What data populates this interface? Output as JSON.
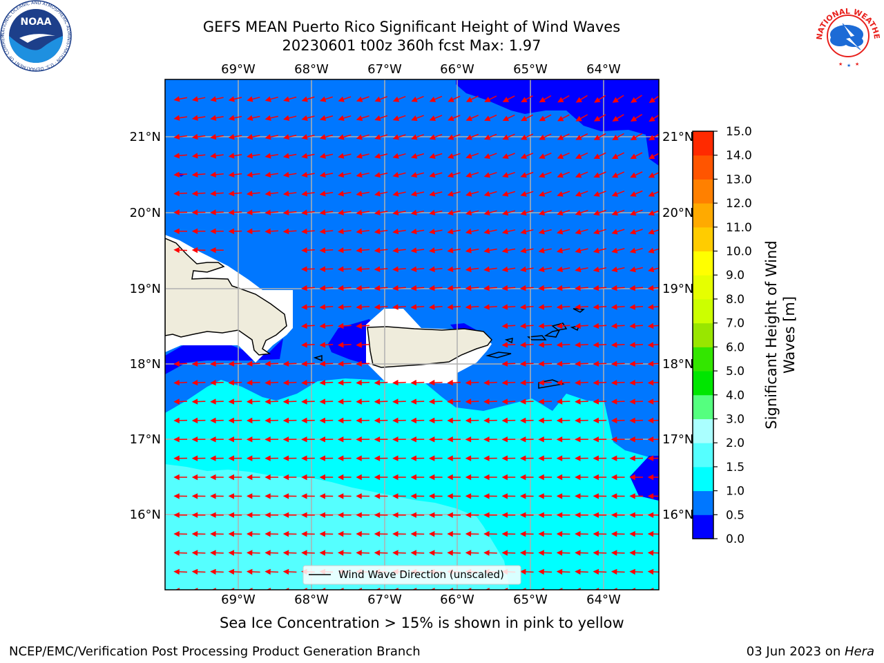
{
  "title": {
    "line1": "GEFS MEAN Puerto Rico Significant Height of Wind Waves",
    "line2": "20230601 t00z 360h fcst   Max: 1.97"
  },
  "map": {
    "lon_labels": [
      "69°W",
      "68°W",
      "67°W",
      "66°W",
      "65°W",
      "64°W"
    ],
    "lat_labels": [
      "21°N",
      "20°N",
      "19°N",
      "18°N",
      "17°N",
      "16°N"
    ],
    "legend_label": "Wind Wave Direction (unscaled)",
    "colors": {
      "ocean_lt_0_5": "#0000ff",
      "ocean_0_5_1": "#0077ff",
      "ocean_1_1_5": "#00ffff",
      "ocean_1_5_2": "#55ffff",
      "land": "#efecdc",
      "mask": "#ffffff",
      "arrow": "#ff0000",
      "grid": "#b0b0b0"
    }
  },
  "colorbar": {
    "label_line1": "Significant Height of Wind",
    "label_line2": "Waves [m]",
    "ticks": [
      "0.0",
      "0.5",
      "1.0",
      "1.5",
      "2.0",
      "3.0",
      "4.0",
      "5.0",
      "6.0",
      "7.0",
      "8.0",
      "9.0",
      "10.0",
      "11.0",
      "12.0",
      "13.0",
      "14.0",
      "15.0"
    ],
    "colors": [
      "#0000ff",
      "#0077ff",
      "#00ffff",
      "#55ffff",
      "#aaffff",
      "#55ff7f",
      "#00e600",
      "#33e600",
      "#99e600",
      "#ccff00",
      "#e6ff00",
      "#ffff00",
      "#ffcc00",
      "#ffaa00",
      "#ff8000",
      "#ff5500",
      "#ff2a00",
      "#ff0000"
    ]
  },
  "logos": {
    "noaa_text": "NOAA",
    "noaa_ring": "NATIONAL OCEANIC AND ATMOSPHERIC ADMINISTRATION · U.S. DEPARTMENT OF COMMERCE ·",
    "nws_ring": "NATIONAL WEATHER SERVICE"
  },
  "sea_ice_note": "Sea Ice Concentration > 15% is shown in pink to yellow",
  "footer": {
    "left": "NCEP/EMC/Verification Post Processing Product Generation Branch",
    "right_date": "03 Jun 2023 on ",
    "right_host": "Hera"
  }
}
